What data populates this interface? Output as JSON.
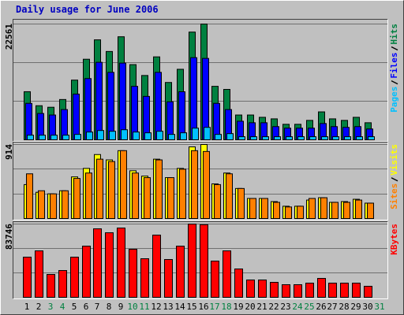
{
  "title": "Daily usage for June 2006",
  "chart_data": [
    {
      "type": "bar",
      "ylim": [
        0,
        22561
      ],
      "yticks": [
        22561
      ],
      "series": [
        {
          "name": "Hits",
          "color": "#008040",
          "values": [
            9370,
            6640,
            6340,
            7850,
            11630,
            15700,
            19480,
            17210,
            20080,
            14650,
            12530,
            16160,
            11170,
            13740,
            20990,
            22561,
            10420,
            9820,
            4830,
            4830,
            4380,
            4080,
            3020,
            3020,
            3780,
            5440,
            4080,
            3780,
            4380,
            3320,
            0
          ]
        },
        {
          "name": "Files",
          "color": "#0000ff",
          "values": [
            7100,
            5130,
            4830,
            5890,
            8910,
            11930,
            15100,
            13140,
            14950,
            10420,
            8460,
            13140,
            7400,
            9360,
            16010,
            15860,
            7100,
            5890,
            3620,
            3320,
            3320,
            2570,
            2270,
            2270,
            2270,
            3170,
            2570,
            2420,
            2570,
            2110,
            0
          ]
        },
        {
          "name": "Pages",
          "color": "#00c0ff",
          "values": [
            900,
            900,
            900,
            900,
            1050,
            1510,
            1810,
            1660,
            1960,
            1510,
            1360,
            1660,
            1050,
            1360,
            2270,
            2420,
            1050,
            1200,
            600,
            600,
            600,
            600,
            600,
            600,
            600,
            600,
            600,
            600,
            600,
            600,
            0
          ]
        }
      ]
    },
    {
      "type": "bar",
      "ylim": [
        0,
        914
      ],
      "yticks": [
        914
      ],
      "series": [
        {
          "name": "Visits",
          "color": "#ffff00",
          "values": [
            419,
            324,
            305,
            343,
            514,
            619,
            790,
            724,
            838,
            590,
            524,
            733,
            505,
            619,
            885,
            914,
            428,
            562,
            371,
            248,
            248,
            209,
            152,
            152,
            228,
            257,
            200,
            209,
            238,
            190,
            0
          ]
        },
        {
          "name": "Sites",
          "color": "#ff8000",
          "values": [
            552,
            343,
            305,
            343,
            495,
            562,
            733,
            704,
            838,
            562,
            505,
            724,
            505,
            609,
            838,
            828,
            419,
            552,
            371,
            248,
            248,
            200,
            143,
            152,
            248,
            257,
            200,
            200,
            228,
            190,
            0
          ]
        }
      ]
    },
    {
      "type": "bar",
      "ylim": [
        0,
        83746
      ],
      "yticks": [
        83746
      ],
      "categories": [
        "1",
        "2",
        "3",
        "4",
        "5",
        "6",
        "7",
        "8",
        "9",
        "10",
        "11",
        "12",
        "13",
        "14",
        "15",
        "16",
        "17",
        "18",
        "19",
        "20",
        "21",
        "22",
        "23",
        "24",
        "25",
        "26",
        "27",
        "28",
        "29",
        "30",
        "31"
      ],
      "category_colors": [
        "#000000",
        "#000000",
        "#008040",
        "#008040",
        "#000000",
        "#000000",
        "#000000",
        "#000000",
        "#000000",
        "#008040",
        "#008040",
        "#000000",
        "#000000",
        "#000000",
        "#000000",
        "#000000",
        "#008040",
        "#008040",
        "#000000",
        "#000000",
        "#000000",
        "#000000",
        "#000000",
        "#008040",
        "#008040",
        "#000000",
        "#000000",
        "#000000",
        "#000000",
        "#000000",
        "#008040"
      ],
      "series": [
        {
          "name": "KBytes",
          "color": "#ff0000",
          "values": [
            45900,
            53100,
            26100,
            30600,
            45900,
            58500,
            78300,
            73800,
            79200,
            54900,
            44100,
            71100,
            43200,
            58500,
            83746,
            83000,
            41400,
            53100,
            32400,
            19800,
            19800,
            17100,
            14400,
            14400,
            16200,
            21600,
            16200,
            16200,
            16200,
            12600,
            0
          ]
        }
      ]
    }
  ]
}
